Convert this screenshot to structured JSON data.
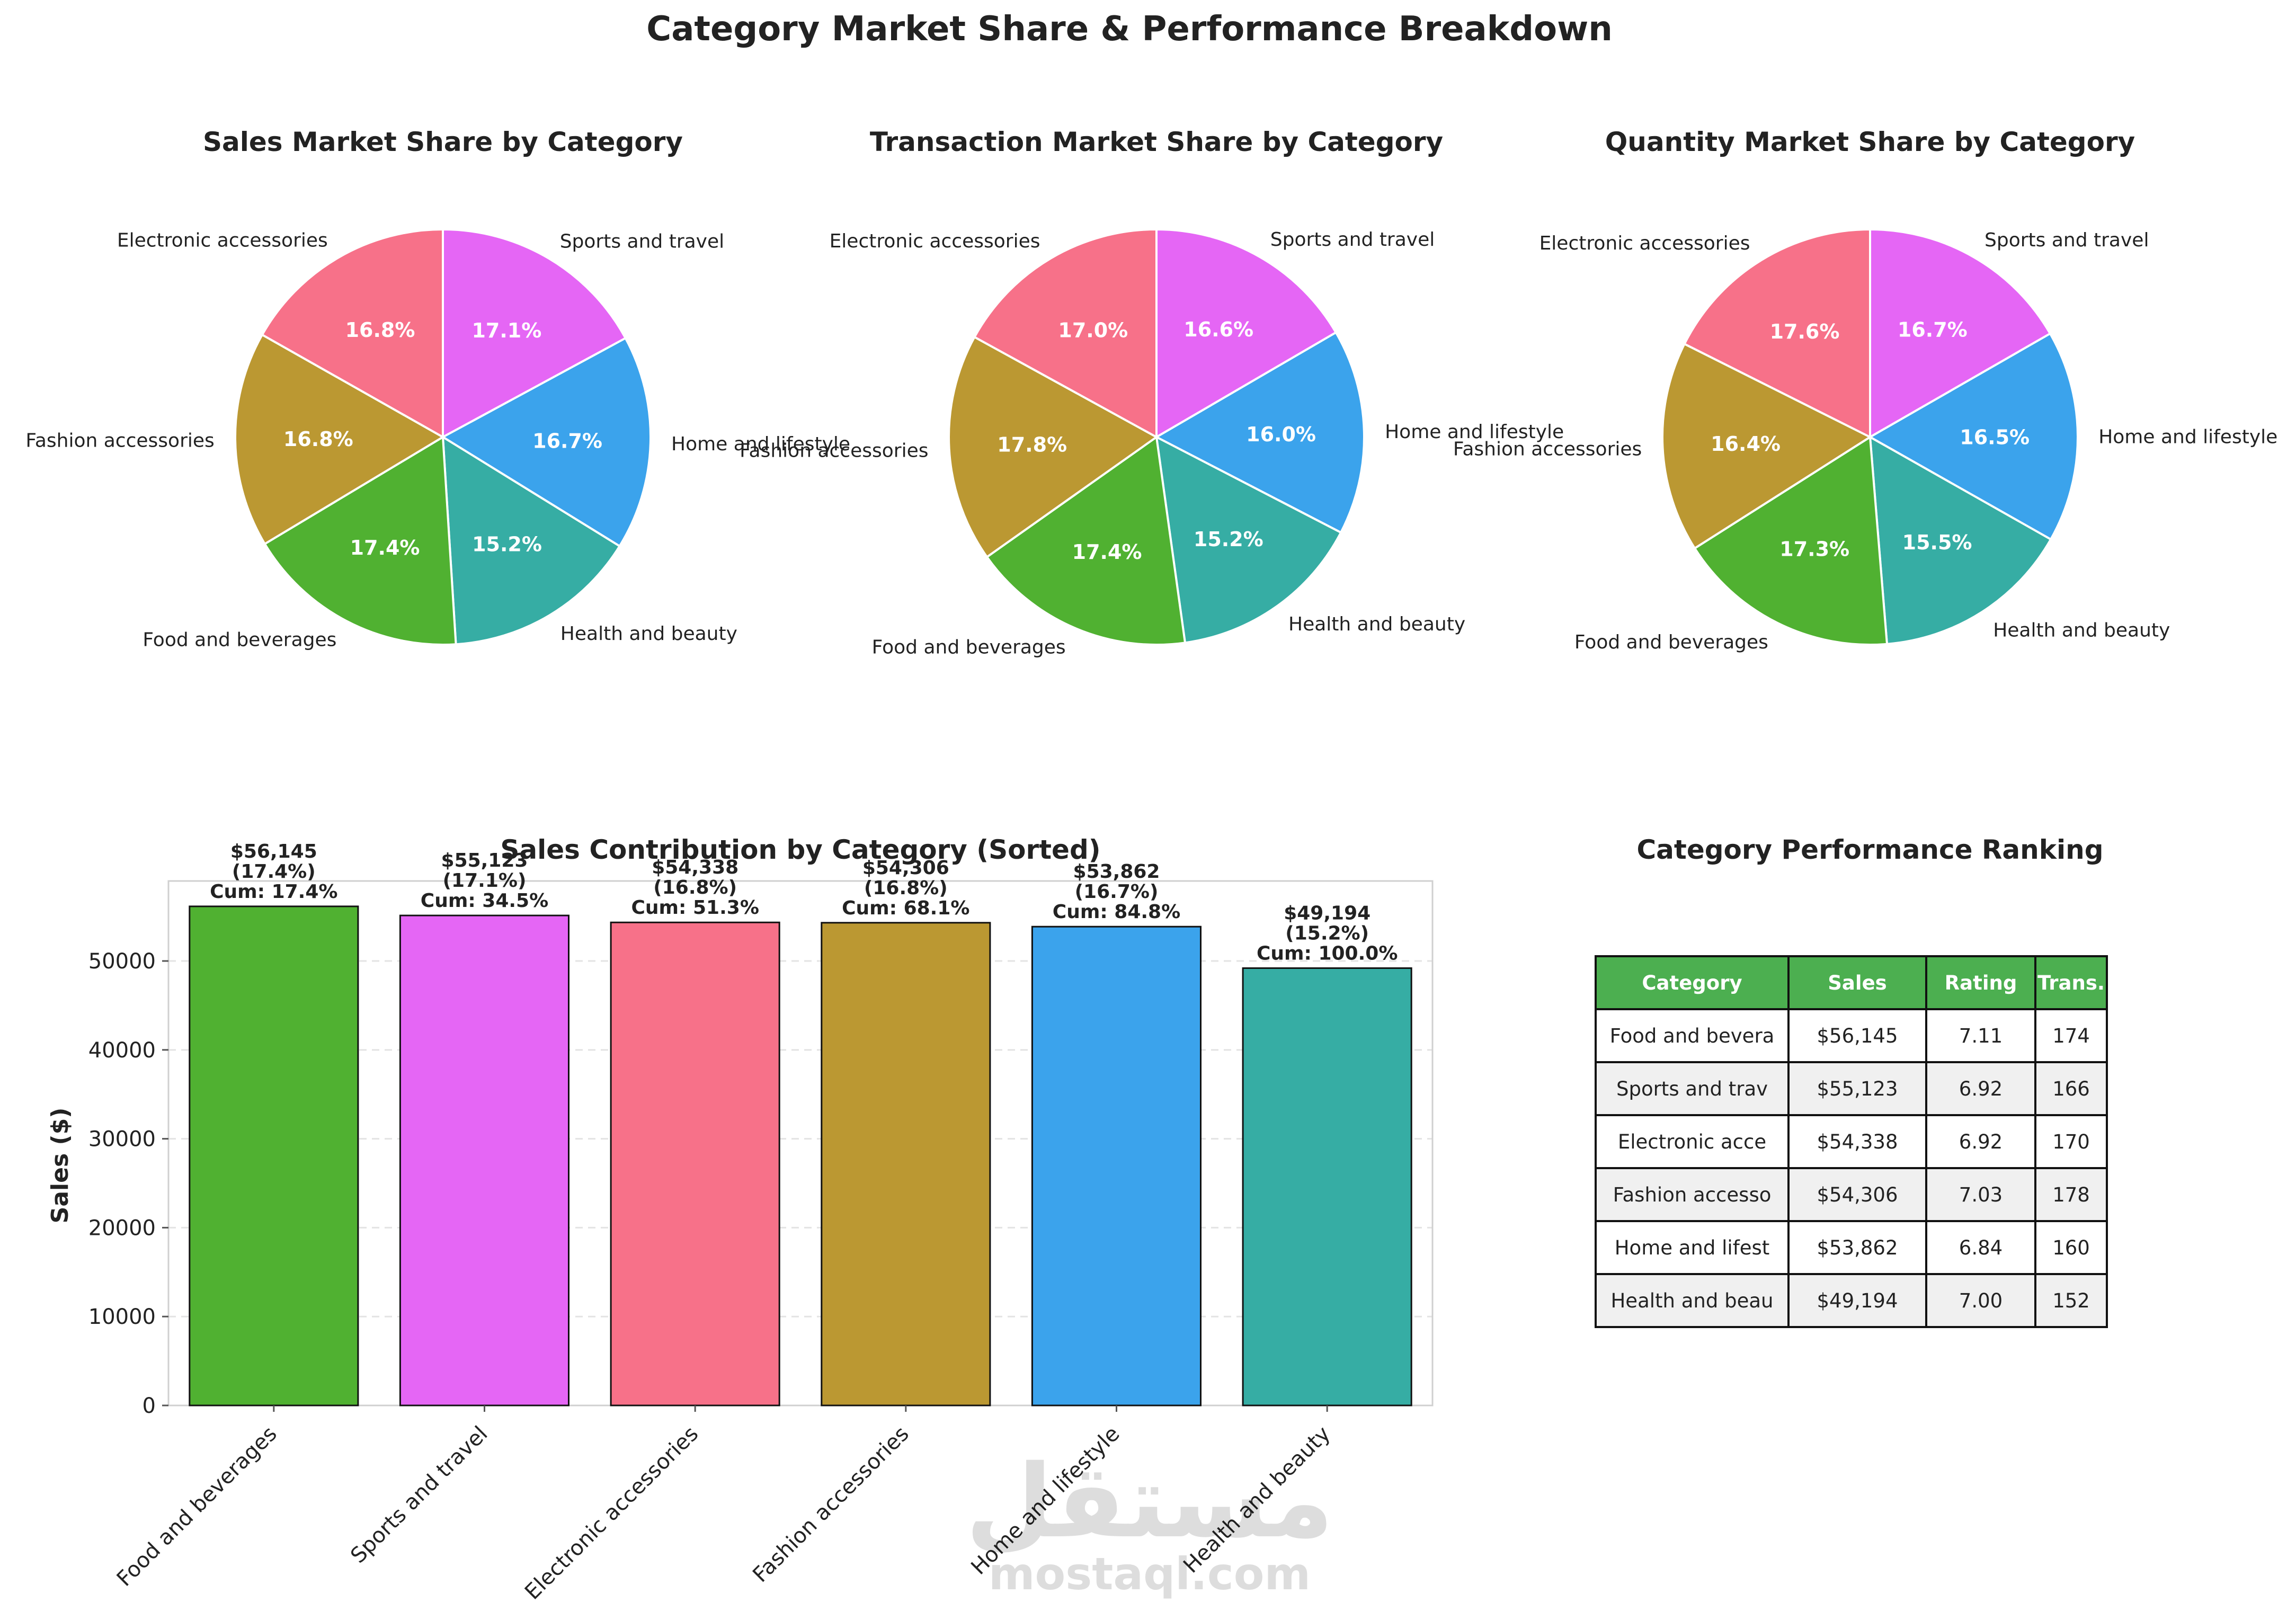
{
  "main_title": "Category Market Share & Performance Breakdown",
  "colors": {
    "Electronic accessories": "#f77189",
    "Sports and travel": "#e566f5",
    "Home and lifestyle": "#3ba3ec",
    "Health and beauty": "#36ada4",
    "Food and beverages": "#50b131",
    "Fashion accessories": "#bb9832",
    "table_header": "#4caf50",
    "table_alt_row": "#f0f0f0"
  },
  "chart_data": [
    {
      "type": "pie",
      "title": "Sales Market Share by Category",
      "slices": [
        {
          "label": "Sports and travel",
          "value": 17.1,
          "pct_label": "17.1%"
        },
        {
          "label": "Home and lifestyle",
          "value": 16.7,
          "pct_label": "16.7%"
        },
        {
          "label": "Health and beauty",
          "value": 15.2,
          "pct_label": "15.2%"
        },
        {
          "label": "Food and beverages",
          "value": 17.4,
          "pct_label": "17.4%"
        },
        {
          "label": "Fashion accessories",
          "value": 16.8,
          "pct_label": "16.8%"
        },
        {
          "label": "Electronic accessories",
          "value": 16.8,
          "pct_label": "16.8%"
        }
      ]
    },
    {
      "type": "pie",
      "title": "Transaction Market Share by Category",
      "slices": [
        {
          "label": "Sports and travel",
          "value": 16.6,
          "pct_label": "16.6%"
        },
        {
          "label": "Home and lifestyle",
          "value": 16.0,
          "pct_label": "16.0%"
        },
        {
          "label": "Health and beauty",
          "value": 15.2,
          "pct_label": "15.2%"
        },
        {
          "label": "Food and beverages",
          "value": 17.4,
          "pct_label": "17.4%"
        },
        {
          "label": "Fashion accessories",
          "value": 17.8,
          "pct_label": "17.8%"
        },
        {
          "label": "Electronic accessories",
          "value": 17.0,
          "pct_label": "17.0%"
        }
      ]
    },
    {
      "type": "pie",
      "title": "Quantity Market Share by Category",
      "slices": [
        {
          "label": "Sports and travel",
          "value": 16.7,
          "pct_label": "16.7%"
        },
        {
          "label": "Home and lifestyle",
          "value": 16.5,
          "pct_label": "16.5%"
        },
        {
          "label": "Health and beauty",
          "value": 15.5,
          "pct_label": "15.5%"
        },
        {
          "label": "Food and beverages",
          "value": 17.3,
          "pct_label": "17.3%"
        },
        {
          "label": "Fashion accessories",
          "value": 16.4,
          "pct_label": "16.4%"
        },
        {
          "label": "Electronic accessories",
          "value": 17.6,
          "pct_label": "17.6%"
        }
      ]
    },
    {
      "type": "bar",
      "title": "Sales Contribution by Category (Sorted)",
      "xlabel": "",
      "ylabel": "Sales ($)",
      "ylim": [
        0,
        59000
      ],
      "yticks": [
        0,
        10000,
        20000,
        30000,
        40000,
        50000
      ],
      "grid": true,
      "categories": [
        "Food and beverages",
        "Sports and travel",
        "Electronic accessories",
        "Fashion accessories",
        "Home and lifestyle",
        "Health and beauty"
      ],
      "values": [
        56145,
        55123,
        54338,
        54306,
        53862,
        49194
      ],
      "bar_labels": [
        [
          "$56,145",
          "(17.4%)",
          "Cum: 17.4%"
        ],
        [
          "$55,123",
          "(17.1%)",
          "Cum: 34.5%"
        ],
        [
          "$54,338",
          "(16.8%)",
          "Cum: 51.3%"
        ],
        [
          "$54,306",
          "(16.8%)",
          "Cum: 68.1%"
        ],
        [
          "$53,862",
          "(16.7%)",
          "Cum: 84.8%"
        ],
        [
          "$49,194",
          "(15.2%)",
          "Cum: 100.0%"
        ]
      ]
    },
    {
      "type": "table",
      "title": "Category Performance Ranking",
      "columns": [
        "Category",
        "Sales",
        "Rating",
        "Trans."
      ],
      "rows": [
        [
          "Food and bevera",
          "$56,145",
          "7.11",
          "174"
        ],
        [
          "Sports and trav",
          "$55,123",
          "6.92",
          "166"
        ],
        [
          "Electronic acce",
          "$54,338",
          "6.92",
          "170"
        ],
        [
          "Fashion accesso",
          "$54,306",
          "7.03",
          "178"
        ],
        [
          "Home and lifest",
          "$53,862",
          "6.84",
          "160"
        ],
        [
          "Health and beau",
          "$49,194",
          "7.00",
          "152"
        ]
      ]
    }
  ],
  "watermark": {
    "arabic": "مستقل",
    "latin": "mostaql.com"
  }
}
